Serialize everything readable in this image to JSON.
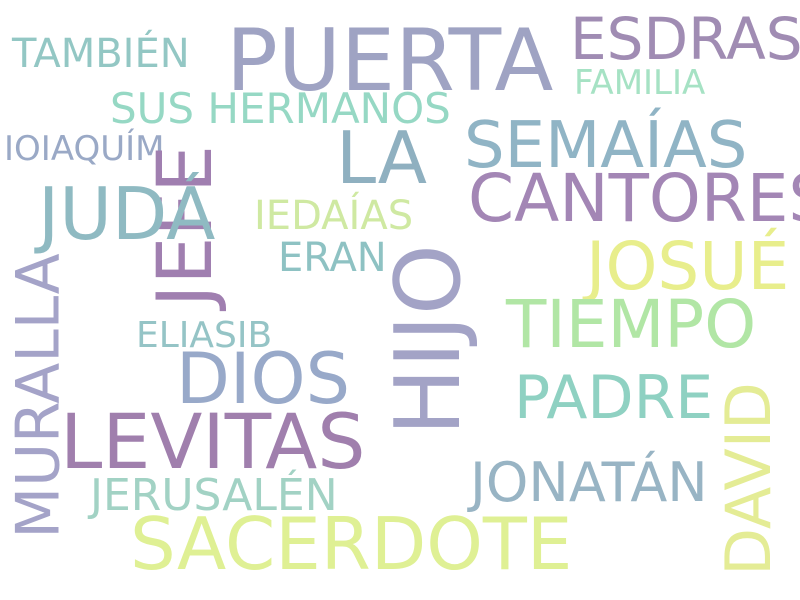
{
  "words": [
    {
      "text": "PUERTA",
      "color": "#9fa3c3"
    },
    {
      "text": "ESDRAS",
      "color": "#a08cb3"
    },
    {
      "text": "TAMBIÉN",
      "color": "#93c7c4"
    },
    {
      "text": "FAMILIA",
      "color": "#a6e2c4"
    },
    {
      "text": "SUS HERMANOS",
      "color": "#96d8c4"
    },
    {
      "text": "LA",
      "color": "#8fb0c0"
    },
    {
      "text": "SEMAÍAS",
      "color": "#90b4c5"
    },
    {
      "text": "IOIAQUÍM",
      "color": "#9aa9c6"
    },
    {
      "text": "JEFE",
      "color": "#a07fb0"
    },
    {
      "text": "CANTORES",
      "color": "#a386b5"
    },
    {
      "text": "JUDÁ",
      "color": "#8fbac2"
    },
    {
      "text": "IEDAÍAS",
      "color": "#cfe9a2"
    },
    {
      "text": "JOSUÉ",
      "color": "#e8ee8c"
    },
    {
      "text": "ERAN",
      "color": "#8ec2c3"
    },
    {
      "text": "HIJO",
      "color": "#a3a3c6"
    },
    {
      "text": "MURALLA",
      "color": "#a4a3c8"
    },
    {
      "text": "TIEMPO",
      "color": "#b1e6a5"
    },
    {
      "text": "ELIASIB",
      "color": "#95c4c6"
    },
    {
      "text": "DIOS",
      "color": "#98a9c9"
    },
    {
      "text": "PADRE",
      "color": "#8fd1c2"
    },
    {
      "text": "LEVITAS",
      "color": "#a07fad"
    },
    {
      "text": "DAVID",
      "color": "#e4ec95"
    },
    {
      "text": "JONATÁN",
      "color": "#98b4c4"
    },
    {
      "text": "JERUSALÉN",
      "color": "#a2d2c4"
    },
    {
      "text": "SACERDOTE",
      "color": "#dff094"
    }
  ]
}
